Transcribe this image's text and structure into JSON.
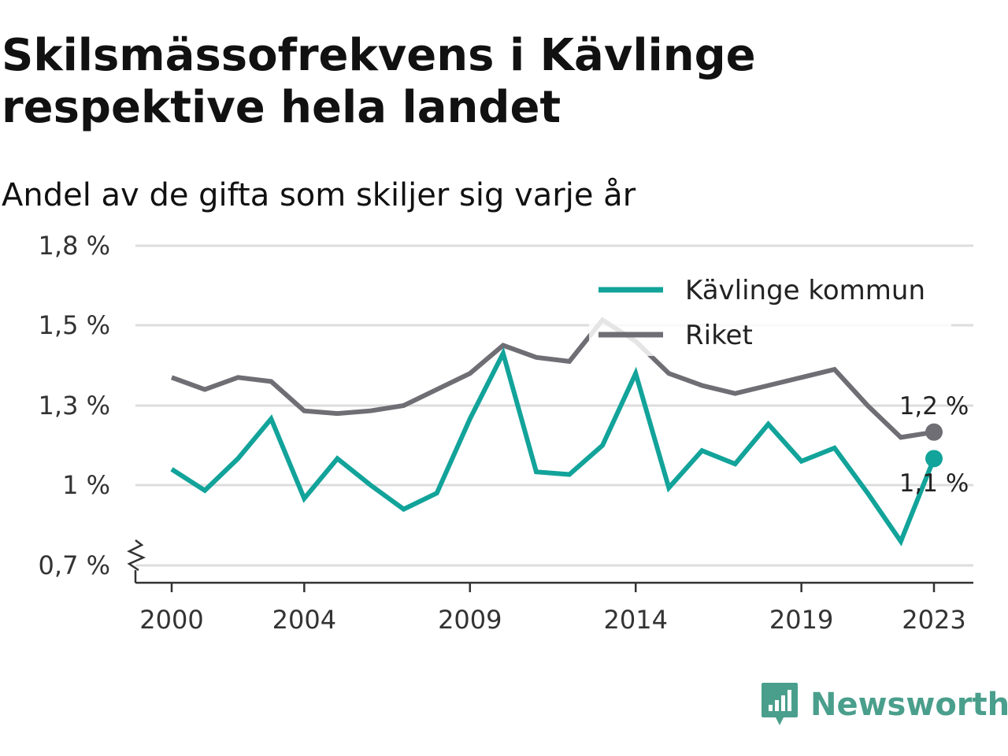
{
  "title": "Skilsmässofrekvens i Kävlinge respektive hela landet",
  "subtitle": "Andel av de gifta som skiljer sig varje år",
  "brand": {
    "name": "Newsworthy",
    "icon": "newsworthy-logo-icon",
    "color": "#4a9f8c"
  },
  "colors": {
    "kavlinge": "#12a39a",
    "riket": "#6f6e74",
    "grid": "#dddddd",
    "axis": "#333333"
  },
  "chart_data": {
    "type": "line",
    "ylim": [
      0.7,
      1.8
    ],
    "y_ticks": [
      0.7,
      1.0,
      1.3,
      1.5,
      1.8
    ],
    "y_tick_labels": [
      "0,7 %",
      "1 %",
      "1,3 %",
      "1,5 %",
      "1,8 %"
    ],
    "x_ticks": [
      2000,
      2004,
      2009,
      2014,
      2019,
      2023
    ],
    "x_tick_labels": [
      "2000",
      "2004",
      "2009",
      "2014",
      "2019",
      "2023"
    ],
    "axis_break": true,
    "grid": true,
    "legend_position": "top-right",
    "x": [
      2000,
      2001,
      2002,
      2003,
      2004,
      2005,
      2006,
      2007,
      2008,
      2009,
      2010,
      2011,
      2012,
      2013,
      2014,
      2015,
      2016,
      2017,
      2018,
      2019,
      2020,
      2021,
      2022,
      2023
    ],
    "series": [
      {
        "name": "Kävlinge kommun",
        "key": "kavlinge",
        "values": [
          1.06,
          0.98,
          1.1,
          1.25,
          0.95,
          1.1,
          1.0,
          0.91,
          0.97,
          1.25,
          1.43,
          1.05,
          1.04,
          1.15,
          1.38,
          0.99,
          1.13,
          1.08,
          1.23,
          1.09,
          1.14,
          0.97,
          0.79,
          1.1
        ],
        "end_label": "1,1 %"
      },
      {
        "name": "Riket",
        "key": "riket",
        "values": [
          1.37,
          1.34,
          1.37,
          1.36,
          1.28,
          1.27,
          1.28,
          1.3,
          1.34,
          1.38,
          1.45,
          1.42,
          1.41,
          1.52,
          1.46,
          1.38,
          1.35,
          1.33,
          1.35,
          1.37,
          1.39,
          1.3,
          1.18,
          1.2
        ],
        "end_label": "1,2 %"
      }
    ]
  }
}
